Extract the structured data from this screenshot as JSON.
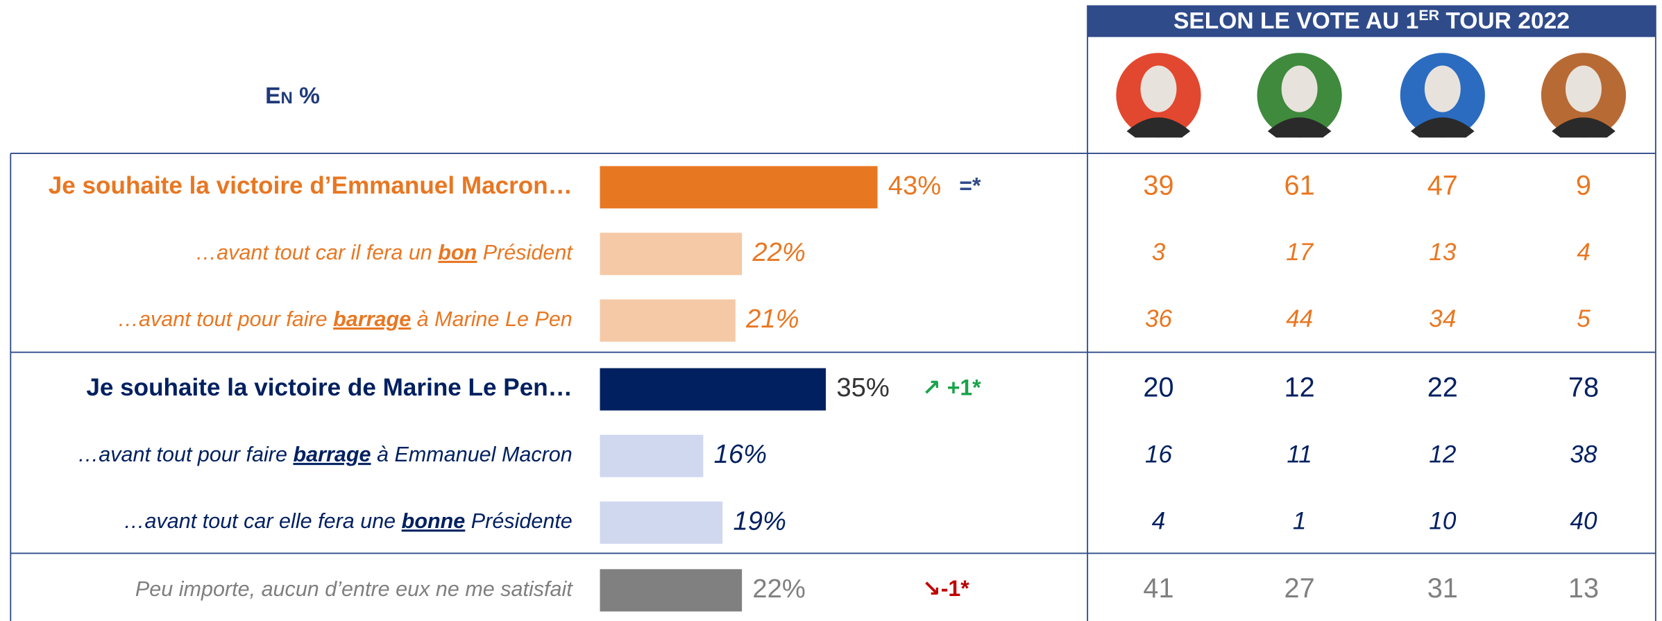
{
  "chart_data": {
    "type": "bar",
    "orientation": "horizontal",
    "unit_label": "En %",
    "column_header": [
      "SELON LE VOTE AU 1",
      "ER",
      " TOUR 2022"
    ],
    "column_header_superscript": 1,
    "column_header_color": "#2f4b8a",
    "photo_colors": [
      "#e2482f",
      "#3f8a3c",
      "#2b6cc0",
      "#b86a35"
    ],
    "xlim": [
      0,
      100
    ],
    "rows": [
      {
        "label": [
          "Je souhaite la victoire d’Emmanuel Macron…"
        ],
        "style": "main",
        "value": 43,
        "value_label": "43%",
        "color": "#e87722",
        "text_color": "#e87722",
        "value_color": "#e87722",
        "change": "=*",
        "change_color": "#2f4b8a",
        "columns": [
          39,
          61,
          47,
          9
        ]
      },
      {
        "label": [
          "…avant tout car il fera un ",
          "bon",
          " Président"
        ],
        "underlined": 1,
        "style": "sub",
        "value": 22,
        "value_label": "22%",
        "color": "#f5c9a6",
        "text_color": "#e87722",
        "value_color": "#e87722",
        "columns": [
          3,
          17,
          13,
          4
        ]
      },
      {
        "label": [
          "…avant tout pour faire ",
          "barrage",
          " à Marine Le Pen"
        ],
        "underlined": 1,
        "style": "sub",
        "value": 21,
        "value_label": "21%",
        "color": "#f5c9a6",
        "text_color": "#e87722",
        "value_color": "#e87722",
        "columns": [
          36,
          44,
          34,
          5
        ]
      },
      {
        "label": [
          "Je souhaite la victoire de Marine Le Pen…"
        ],
        "style": "main",
        "value": 35,
        "value_label": "35%",
        "color": "#002060",
        "text_color": "#002060",
        "value_color": "#333333",
        "change": "↗ +1*",
        "change_color": "#1aa34a",
        "columns": [
          20,
          12,
          22,
          78
        ]
      },
      {
        "label": [
          "…avant tout pour faire ",
          "barrage",
          " à Emmanuel Macron"
        ],
        "underlined": 1,
        "style": "sub",
        "value": 16,
        "value_label": "16%",
        "color": "#d0d8f0",
        "text_color": "#002060",
        "value_color": "#002060",
        "columns": [
          16,
          11,
          12,
          38
        ]
      },
      {
        "label": [
          "…avant tout car elle fera une ",
          "bonne",
          " Présidente"
        ],
        "underlined": 1,
        "style": "sub",
        "value": 19,
        "value_label": "19%",
        "color": "#d0d8f0",
        "text_color": "#002060",
        "value_color": "#002060",
        "columns": [
          4,
          1,
          10,
          40
        ]
      },
      {
        "label": [
          "Peu importe, aucun d’entre eux ne me satisfait"
        ],
        "style": "neutral",
        "value": 22,
        "value_label": "22%",
        "color": "#808080",
        "text_color": "#7f7f7f",
        "value_color": "#7f7f7f",
        "change": "↘-1*",
        "change_color": "#c00000",
        "columns": [
          41,
          27,
          31,
          13
        ]
      }
    ]
  }
}
